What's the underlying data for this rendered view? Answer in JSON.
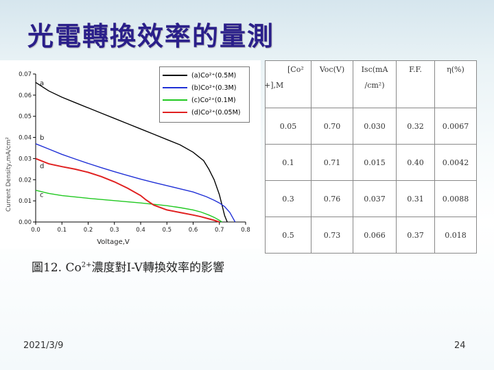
{
  "title": "光電轉換效率的量測",
  "caption": {
    "prefix": "圖12.",
    "ion": "Co",
    "charge": "2+",
    "suffix": "濃度對I-V轉換效率的影響"
  },
  "footer": {
    "date": "2021/3/9",
    "page": "24"
  },
  "table": {
    "headers": [
      {
        "line1": "[Co²",
        "line2": "+],M"
      },
      {
        "line1": "Voc(V)",
        "line2": ""
      },
      {
        "line1": "Isc(mA",
        "line2": "/cm²)"
      },
      {
        "line1": "F.F.",
        "line2": ""
      },
      {
        "line1": "η(%)",
        "line2": ""
      }
    ],
    "rows": [
      [
        "0.05",
        "0.70",
        "0.030",
        "0.32",
        "0.0067"
      ],
      [
        "0.1",
        "0.71",
        "0.015",
        "0.40",
        "0.0042"
      ],
      [
        "0.3",
        "0.76",
        "0.037",
        "0.31",
        "0.0088"
      ],
      [
        "0.5",
        "0.73",
        "0.066",
        "0.37",
        "0.018"
      ]
    ]
  },
  "chart_data": {
    "type": "line",
    "xlabel": "Voltage,V",
    "ylabel": "Current Density,mA/cm²",
    "xlim": [
      0.0,
      0.8
    ],
    "ylim": [
      0.0,
      0.07
    ],
    "xticks": [
      "0.0",
      "0.1",
      "0.2",
      "0.3",
      "0.4",
      "0.5",
      "0.6",
      "0.7",
      "0.8"
    ],
    "yticks": [
      "0.00",
      "0.01",
      "0.02",
      "0.03",
      "0.04",
      "0.05",
      "0.06",
      "0.07"
    ],
    "legend_position": "top-right",
    "series": [
      {
        "name": "(a)Co²⁺(0.5M)",
        "tag": "a",
        "color": "#000000",
        "x": [
          0,
          0.05,
          0.1,
          0.15,
          0.2,
          0.25,
          0.3,
          0.35,
          0.4,
          0.45,
          0.5,
          0.55,
          0.6,
          0.62,
          0.64,
          0.66,
          0.68,
          0.7,
          0.71,
          0.72,
          0.73
        ],
        "y": [
          0.066,
          0.062,
          0.059,
          0.0565,
          0.054,
          0.0515,
          0.049,
          0.0465,
          0.044,
          0.0415,
          0.039,
          0.0365,
          0.033,
          0.031,
          0.029,
          0.025,
          0.02,
          0.013,
          0.008,
          0.003,
          0.0
        ]
      },
      {
        "name": "(b)Co²⁺(0.3M)",
        "tag": "b",
        "color": "#1f2fd6",
        "x": [
          0,
          0.05,
          0.1,
          0.15,
          0.2,
          0.25,
          0.3,
          0.35,
          0.4,
          0.45,
          0.5,
          0.55,
          0.6,
          0.65,
          0.68,
          0.7,
          0.72,
          0.74,
          0.75,
          0.76
        ],
        "y": [
          0.037,
          0.0345,
          0.032,
          0.0298,
          0.0277,
          0.0257,
          0.0238,
          0.022,
          0.0203,
          0.0187,
          0.0172,
          0.0157,
          0.0142,
          0.012,
          0.0103,
          0.009,
          0.0073,
          0.0045,
          0.0022,
          0.0
        ]
      },
      {
        "name": "(c)Co²⁺(0.1M)",
        "tag": "c",
        "color": "#1fc81f",
        "x": [
          0,
          0.05,
          0.1,
          0.2,
          0.3,
          0.4,
          0.5,
          0.55,
          0.6,
          0.63,
          0.66,
          0.68,
          0.7,
          0.71
        ],
        "y": [
          0.015,
          0.0135,
          0.0125,
          0.0112,
          0.0101,
          0.009,
          0.0077,
          0.0068,
          0.0057,
          0.0047,
          0.0033,
          0.0022,
          0.0008,
          0.0
        ]
      },
      {
        "name": "(d)Co²⁺(0.05M)",
        "tag": "d",
        "color": "#e02020",
        "x": [
          0,
          0.05,
          0.1,
          0.15,
          0.2,
          0.25,
          0.3,
          0.35,
          0.4,
          0.42,
          0.45,
          0.5,
          0.55,
          0.6,
          0.63,
          0.66,
          0.68,
          0.7
        ],
        "y": [
          0.03,
          0.0275,
          0.0262,
          0.025,
          0.0235,
          0.0215,
          0.019,
          0.016,
          0.0125,
          0.0105,
          0.008,
          0.0057,
          0.0045,
          0.0033,
          0.0025,
          0.0015,
          0.0008,
          0.0
        ]
      }
    ]
  }
}
